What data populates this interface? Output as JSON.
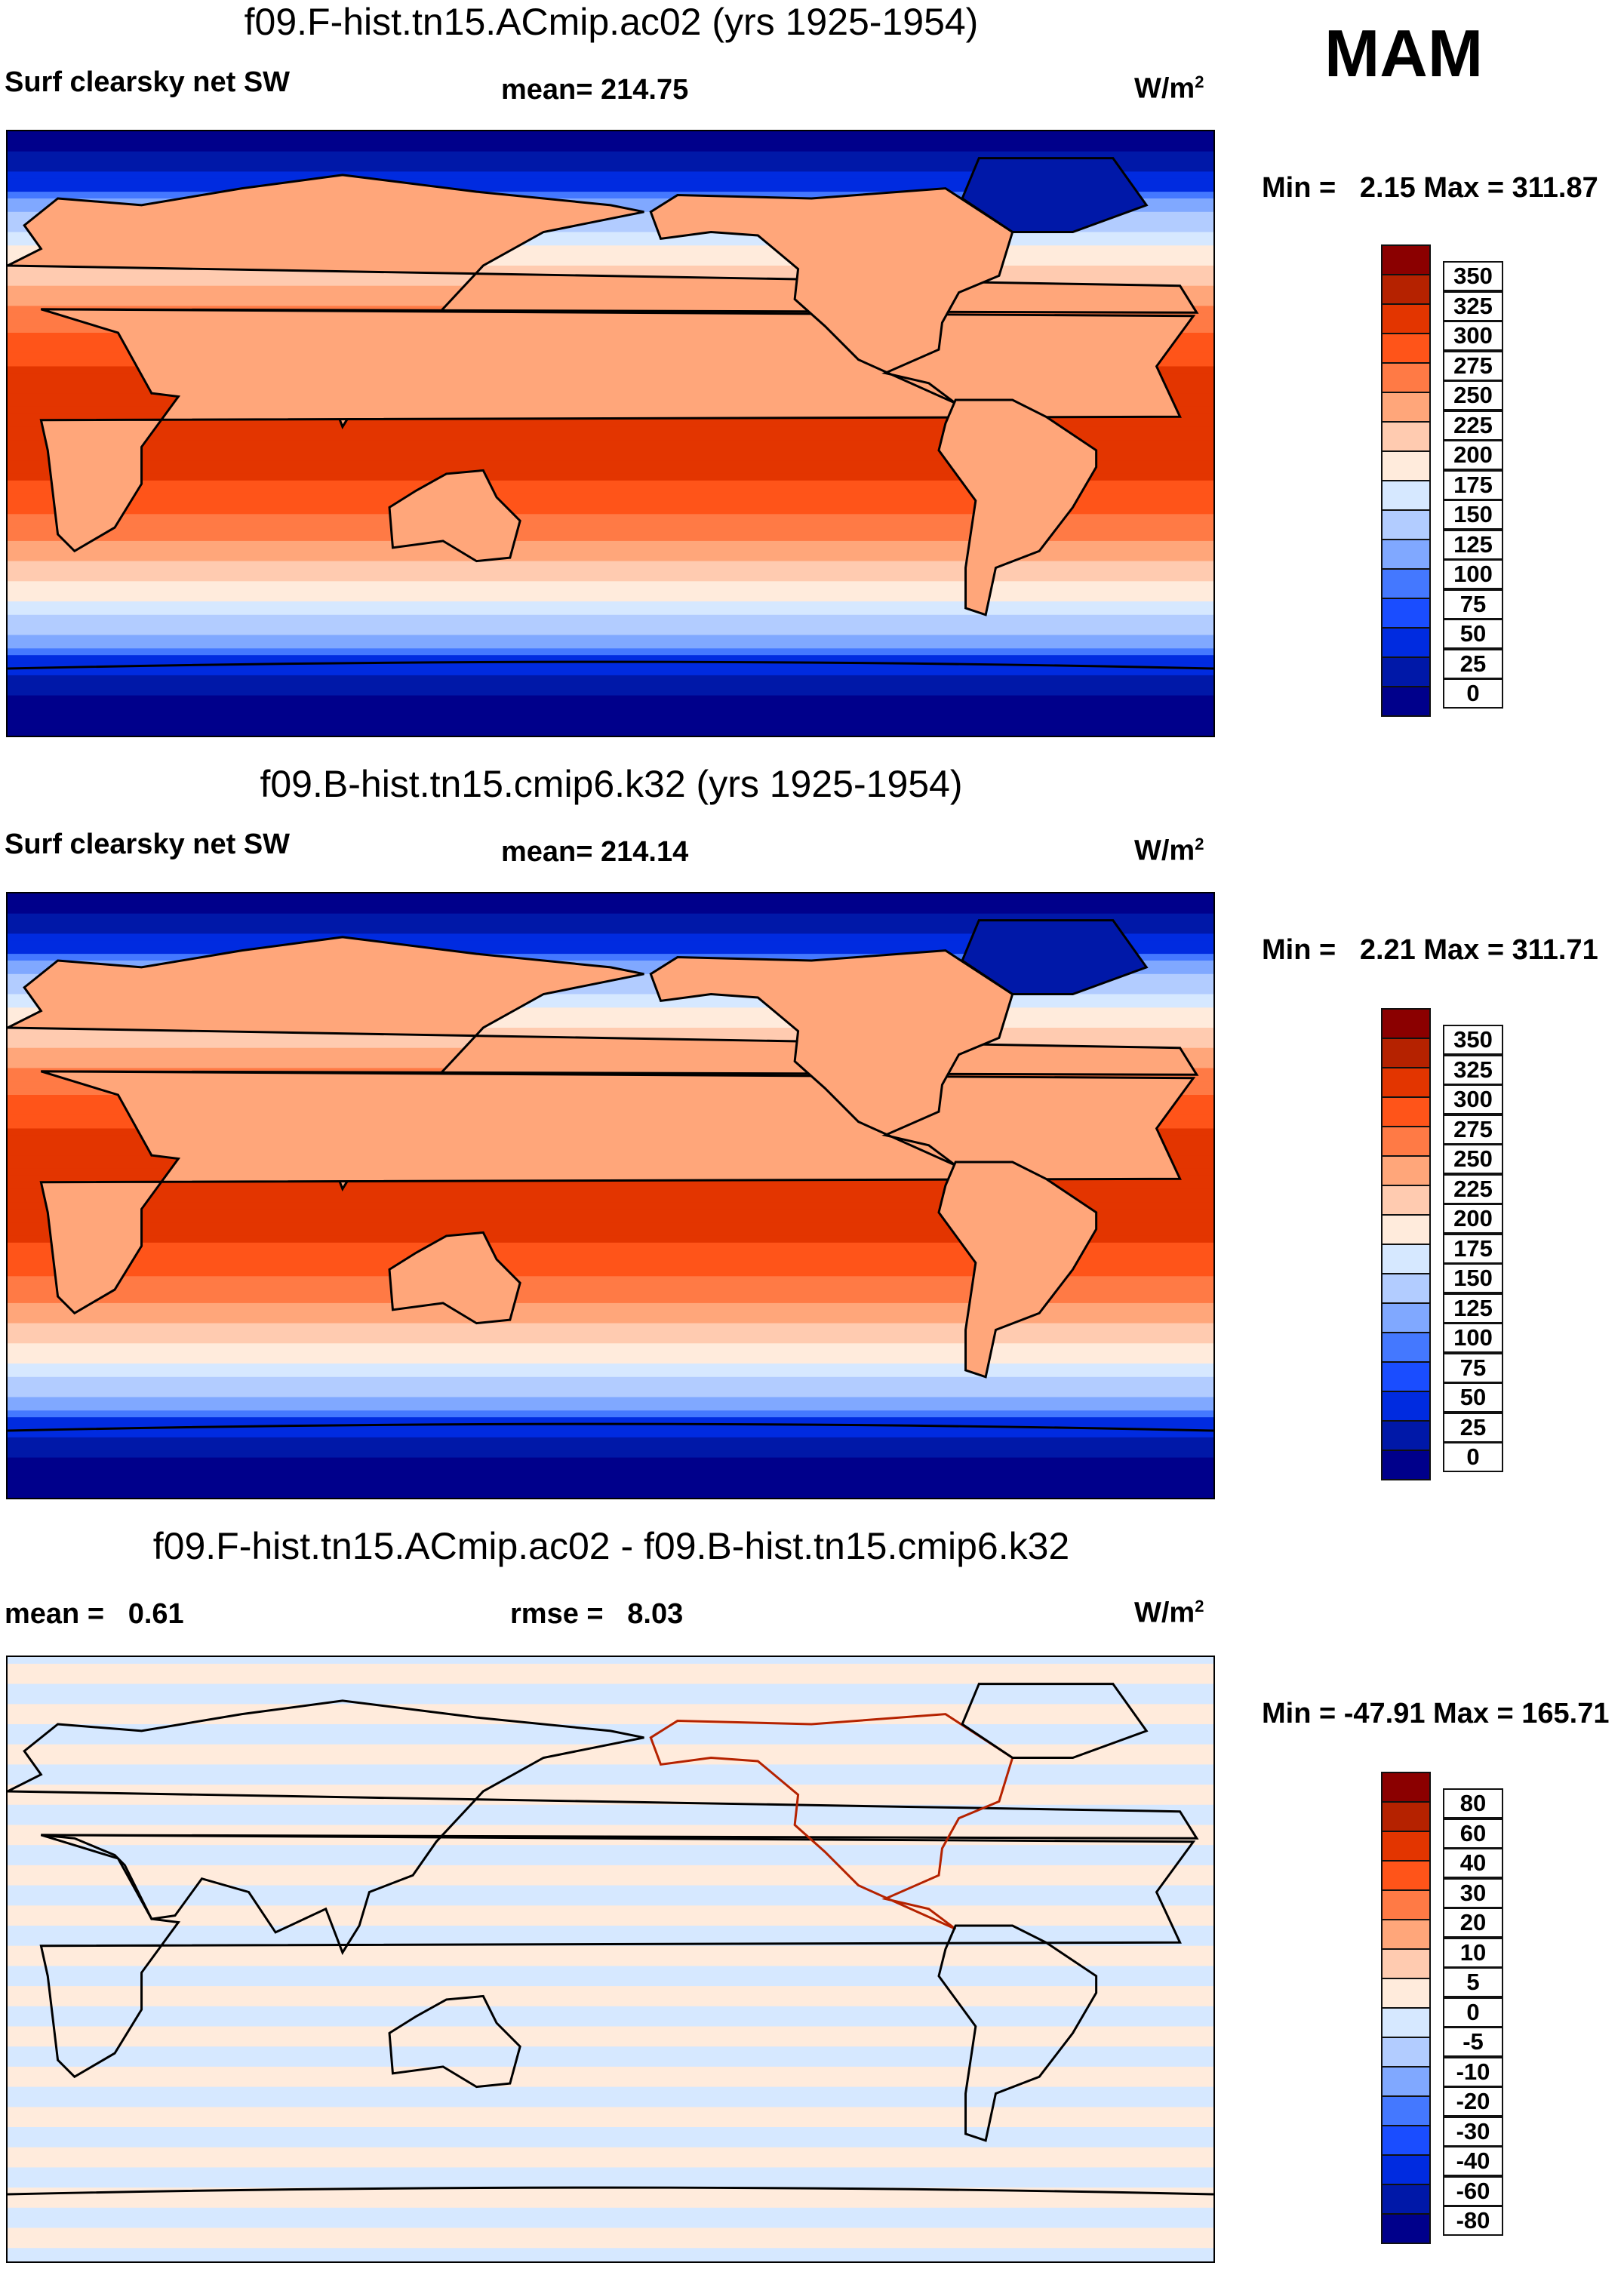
{
  "season": "MAM",
  "units": "W/m2",
  "chart_data": [
    {
      "type": "heatmap",
      "title": "f09.F-hist.tn15.ACmip.ac02 (yrs 1925-1954)",
      "variable": "Surf clearsky net SW",
      "mean_label": "mean= 214.75",
      "minmax": "Min =   2.15 Max = 311.87",
      "levels": [
        "350",
        "325",
        "300",
        "275",
        "250",
        "225",
        "200",
        "175",
        "150",
        "125",
        "100",
        "75",
        "50",
        "25",
        "0"
      ]
    },
    {
      "type": "heatmap",
      "title": "f09.B-hist.tn15.cmip6.k32 (yrs 1925-1954)",
      "variable": "Surf clearsky net SW",
      "mean_label": "mean= 214.14",
      "minmax": "Min =   2.21 Max = 311.71",
      "levels": [
        "350",
        "325",
        "300",
        "275",
        "250",
        "225",
        "200",
        "175",
        "150",
        "125",
        "100",
        "75",
        "50",
        "25",
        "0"
      ]
    },
    {
      "type": "heatmap",
      "title": "f09.F-hist.tn15.ACmip.ac02 - f09.B-hist.tn15.cmip6.k32",
      "mean_label": "mean =   0.61",
      "rmse_label": "rmse =   8.03",
      "minmax": "Min = -47.91 Max = 165.71",
      "levels": [
        "80",
        "60",
        "40",
        "30",
        "20",
        "10",
        "5",
        "0",
        "-5",
        "-10",
        "-20",
        "-30",
        "-40",
        "-60",
        "-80"
      ]
    }
  ],
  "colors": [
    "#8b0000",
    "#b52200",
    "#e33500",
    "#ff5419",
    "#ff7a45",
    "#ffa67a",
    "#ffcbb0",
    "#ffebdc",
    "#d6e8ff",
    "#b2ccff",
    "#80a8ff",
    "#4478ff",
    "#1a4dff",
    "#002be0",
    "#0018a8",
    "#00008b"
  ]
}
